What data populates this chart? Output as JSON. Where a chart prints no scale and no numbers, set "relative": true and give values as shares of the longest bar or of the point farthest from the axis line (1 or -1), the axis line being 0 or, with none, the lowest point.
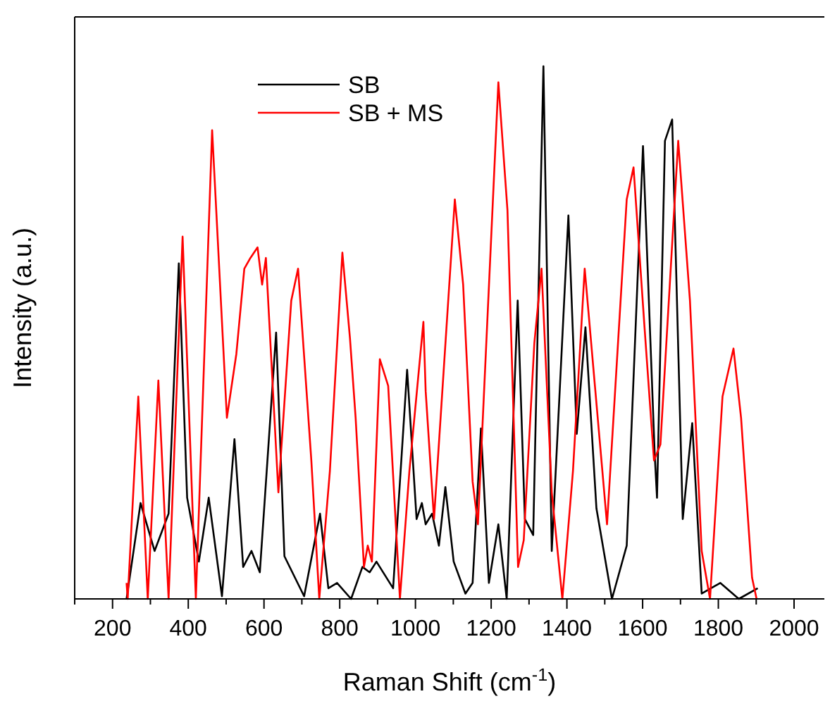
{
  "chart_data": {
    "type": "line",
    "relative": true,
    "xlabel": "Raman Shift (cm$^{-1}$)",
    "ylabel": "Intensity (a.u.)",
    "xlim": [
      100,
      2080
    ],
    "xticks": [
      {
        "value": 100,
        "label": null
      },
      200,
      {
        "value": 300,
        "label": null
      },
      400,
      {
        "value": 500,
        "label": null
      },
      600,
      {
        "value": 700,
        "label": null
      },
      800,
      {
        "value": 900,
        "label": null
      },
      1000,
      {
        "value": 1100,
        "label": null
      },
      1200,
      {
        "value": 1300,
        "label": null
      },
      1400,
      {
        "value": 1500,
        "label": null
      },
      1600,
      {
        "value": 1700,
        "label": null
      },
      1800,
      {
        "value": 1900,
        "label": null
      },
      2000
    ],
    "grid": false,
    "legend": "top",
    "marker": "none",
    "line_style": "solid",
    "series": [
      {
        "name": "SB",
        "color": "#000000",
        "x": [
          237,
          274,
          311,
          348,
          375,
          397,
          428,
          454,
          489,
          522,
          545,
          567,
          589,
          632,
          654,
          706,
          748,
          770,
          793,
          830,
          860,
          879,
          897,
          941,
          978,
          1003,
          1017,
          1027,
          1044,
          1062,
          1079,
          1101,
          1132,
          1151,
          1173,
          1194,
          1219,
          1241,
          1270,
          1289,
          1311,
          1338,
          1360,
          1404,
          1426,
          1449,
          1478,
          1519,
          1558,
          1601,
          1632,
          1638,
          1659,
          1678,
          1706,
          1731,
          1756,
          1805,
          1854,
          1904
        ],
        "values": [
          0,
          0.18,
          0.09,
          0.16,
          0.63,
          0.19,
          0.07,
          0.19,
          0.005,
          0.3,
          0.06,
          0.09,
          0.05,
          0.5,
          0.08,
          0.005,
          0.16,
          0.02,
          0.03,
          0,
          0.06,
          0.05,
          0.07,
          0.02,
          0.43,
          0.15,
          0.18,
          0.14,
          0.16,
          0.1,
          0.21,
          0.07,
          0.01,
          0.03,
          0.32,
          0.03,
          0.14,
          0,
          0.56,
          0.15,
          0.12,
          1,
          0.09,
          0.72,
          0.31,
          0.51,
          0.17,
          0,
          0.1,
          0.85,
          0.27,
          0.19,
          0.86,
          0.9,
          0.15,
          0.33,
          0.01,
          0.03,
          0,
          0.02
        ]
      },
      {
        "name": "SB + MS",
        "color": "#ff0000",
        "x": [
          237,
          240,
          268,
          293,
          321,
          348,
          385,
          420,
          463,
          502,
          527,
          548,
          564,
          583,
          595,
          605,
          638,
          672,
          690,
          725,
          746,
          774,
          807,
          827,
          842,
          864,
          874,
          885,
          906,
          928,
          959,
          984,
          1021,
          1027,
          1049,
          1104,
          1126,
          1151,
          1165,
          1219,
          1243,
          1271,
          1286,
          1314,
          1333,
          1360,
          1388,
          1416,
          1447,
          1474,
          1506,
          1558,
          1576,
          1605,
          1630,
          1647,
          1694,
          1725,
          1756,
          1778,
          1811,
          1840,
          1860,
          1889,
          1901
        ],
        "values": [
          0.03,
          0,
          0.38,
          0,
          0.41,
          0,
          0.68,
          0,
          0.88,
          0.34,
          0.46,
          0.62,
          0.64,
          0.66,
          0.59,
          0.64,
          0.2,
          0.56,
          0.62,
          0.26,
          0,
          0.24,
          0.65,
          0.49,
          0.34,
          0.06,
          0.1,
          0.07,
          0.45,
          0.4,
          0,
          0.24,
          0.52,
          0.39,
          0.15,
          0.75,
          0.59,
          0.22,
          0.14,
          0.97,
          0.73,
          0.06,
          0.11,
          0.48,
          0.62,
          0.2,
          0,
          0.24,
          0.62,
          0.4,
          0.14,
          0.75,
          0.81,
          0.51,
          0.26,
          0.29,
          0.86,
          0.56,
          0.09,
          0,
          0.38,
          0.47,
          0.34,
          0.04,
          0
        ]
      }
    ]
  }
}
